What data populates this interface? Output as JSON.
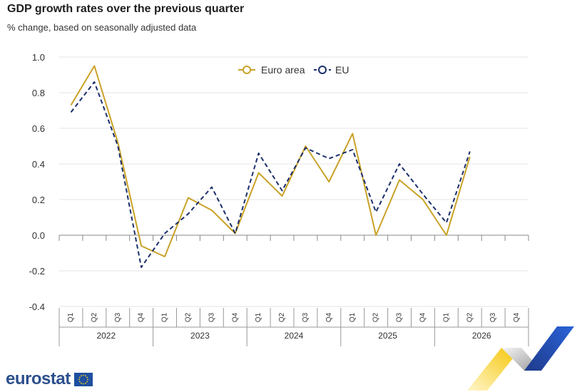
{
  "chart_data": {
    "type": "line",
    "title": "GDP growth rates over the previous quarter",
    "subtitle": "% change, based on seasonally adjusted data",
    "ylim": [
      -0.4,
      1.0
    ],
    "yticks": [
      "1.0",
      "0.8",
      "0.6",
      "0.4",
      "0.2",
      "0.0",
      "-0.2",
      "-0.4"
    ],
    "ytick_values": [
      1.0,
      0.8,
      0.6,
      0.4,
      0.2,
      0.0,
      -0.2,
      -0.4
    ],
    "grid": true,
    "legend_position": "top-center",
    "years": [
      "2022",
      "2023",
      "2024",
      "2025",
      "2026"
    ],
    "quarters": [
      "Q1",
      "Q2",
      "Q3",
      "Q4"
    ],
    "categories": [
      "2022 Q1",
      "2022 Q2",
      "2022 Q3",
      "2022 Q4",
      "2023 Q1",
      "2023 Q2",
      "2023 Q3",
      "2023 Q4",
      "2024 Q1",
      "2024 Q2",
      "2024 Q3",
      "2024 Q4",
      "2025 Q1",
      "2025 Q2",
      "2025 Q3",
      "2025 Q4",
      "2026 Q1",
      "2026 Q2",
      "2026 Q3",
      "2026 Q4"
    ],
    "series": [
      {
        "name": "Euro area",
        "color": "#c9a227",
        "dash": false,
        "values": [
          0.73,
          0.95,
          0.52,
          -0.06,
          -0.12,
          0.21,
          0.14,
          0.01,
          0.35,
          0.22,
          0.5,
          0.3,
          0.57,
          0.0,
          0.31,
          0.2,
          0.0,
          0.44,
          null,
          null
        ]
      },
      {
        "name": "EU",
        "color": "#1b2f6b",
        "dash": true,
        "values": [
          0.69,
          0.86,
          0.5,
          -0.18,
          0.01,
          0.12,
          0.27,
          0.01,
          0.46,
          0.25,
          0.49,
          0.43,
          0.48,
          0.13,
          0.4,
          0.23,
          0.07,
          0.47,
          null,
          null
        ]
      }
    ]
  },
  "logo": {
    "text": "eurostat"
  }
}
